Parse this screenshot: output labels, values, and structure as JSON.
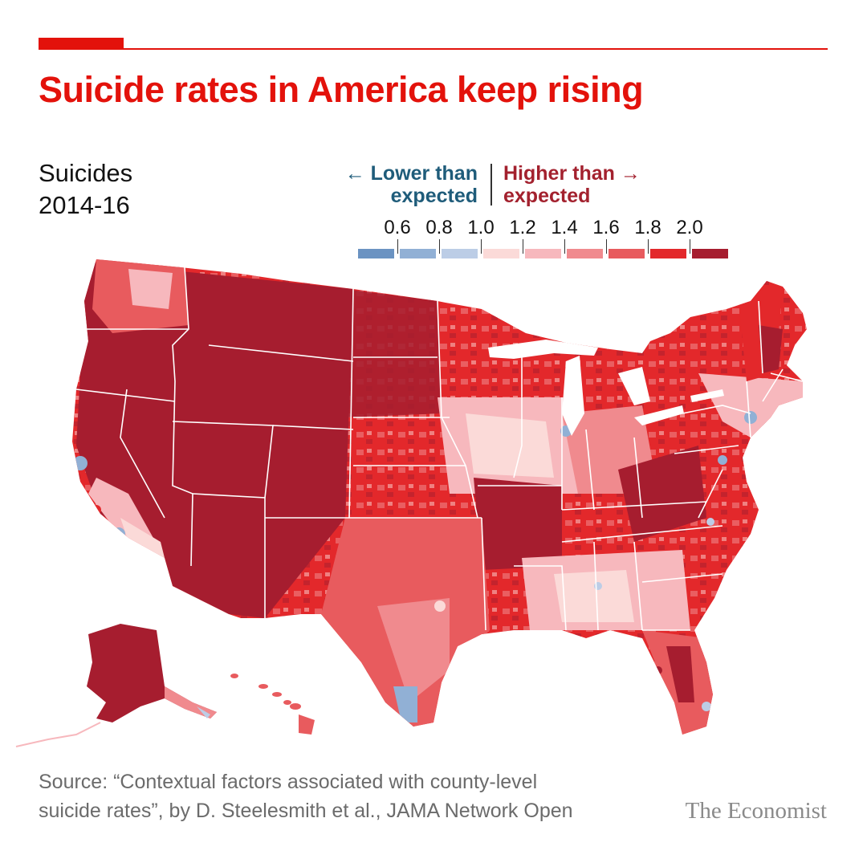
{
  "header": {
    "title": "Suicide rates in America keep rising",
    "unit": "Suicides",
    "period": "2014-16"
  },
  "legend": {
    "lower_line1": "← Lower than",
    "lower_line2": "expected",
    "higher_line1": "Higher than →",
    "higher_line2": "expected",
    "ticks": [
      "0.6",
      "0.8",
      "1.0",
      "1.2",
      "1.4",
      "1.6",
      "1.8",
      "2.0"
    ],
    "colors": [
      "#6b93c2",
      "#91b0d5",
      "#bccde6",
      "#fbdad8",
      "#f7b8bd",
      "#f08a8e",
      "#e85b5e",
      "#e3282b",
      "#a61d2f"
    ]
  },
  "map_data": {
    "type": "choropleth",
    "geography": "US counties",
    "measure": "Ratio of actual to expected suicide rate"
  },
  "footer": {
    "source_line1": "Source: “Contextual factors associated with county-level",
    "source_line2": "suicide rates”, by D. Steelesmith et al., JAMA Network Open",
    "logo": "The Economist"
  }
}
